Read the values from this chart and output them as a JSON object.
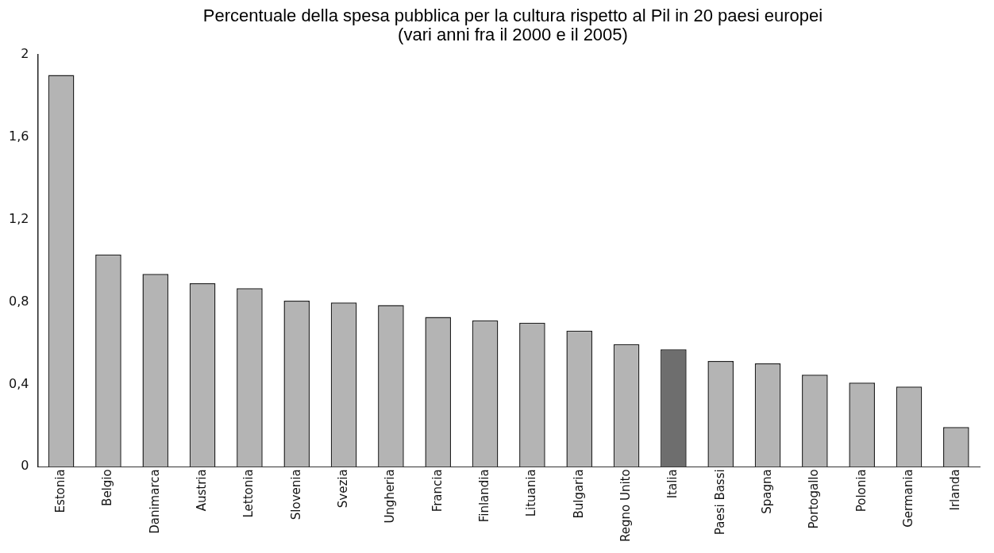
{
  "chart_data": {
    "type": "bar",
    "title": "Percentuale della spesa pubblica per la cultura rispetto al Pil in 20 paesi europei",
    "subtitle": "(vari anni fra il 2000 e il 2005)",
    "categories": [
      "Estonia",
      "Belgio",
      "Danimarca",
      "Austria",
      "Lettonia",
      "Slovenia",
      "Svezia",
      "Ungheria",
      "Francia",
      "Finlandia",
      "Lituania",
      "Bulgaria",
      "Regno Unito",
      "Italia",
      "Paesi Bassi",
      "Spagna",
      "Portogallo",
      "Polonia",
      "Germania",
      "Irlanda"
    ],
    "values": [
      1.9,
      1.03,
      0.935,
      0.89,
      0.866,
      0.806,
      0.797,
      0.784,
      0.727,
      0.71,
      0.699,
      0.66,
      0.595,
      0.57,
      0.513,
      0.502,
      0.447,
      0.408,
      0.389,
      0.193
    ],
    "colors": [
      "#b4b4b4",
      "#b4b4b4",
      "#b4b4b4",
      "#b4b4b4",
      "#b4b4b4",
      "#b4b4b4",
      "#b4b4b4",
      "#b4b4b4",
      "#b4b4b4",
      "#b4b4b4",
      "#b4b4b4",
      "#b4b4b4",
      "#b4b4b4",
      "#6e6e6e",
      "#b4b4b4",
      "#b4b4b4",
      "#b4b4b4",
      "#b4b4b4",
      "#b4b4b4",
      "#b4b4b4"
    ],
    "ylim": [
      0,
      2
    ],
    "yticks": [
      0,
      {
        "value": 0.4,
        "label": "0,4"
      },
      {
        "value": 0.8,
        "label": "0,8"
      },
      {
        "value": 1.2,
        "label": "1,2"
      },
      {
        "value": 1.6,
        "label": "1,6"
      },
      2
    ],
    "grid": false,
    "legend": false
  }
}
